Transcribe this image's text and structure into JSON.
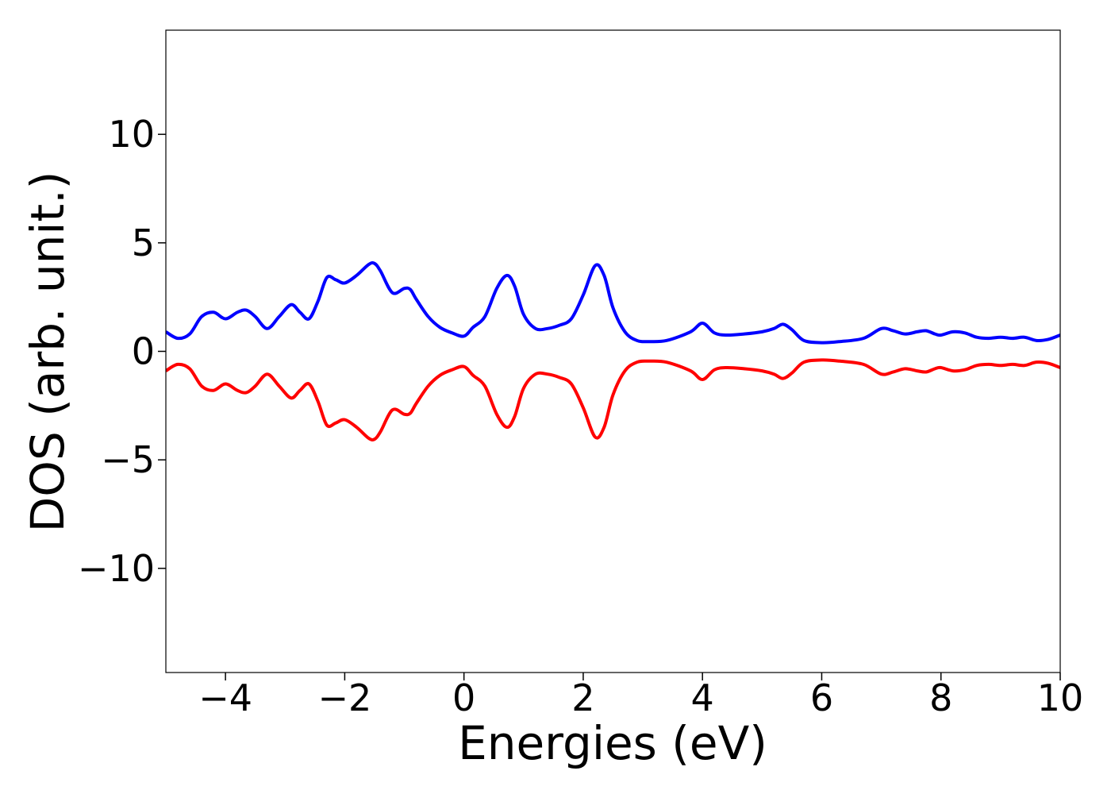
{
  "chart_data": {
    "type": "line",
    "title": "",
    "xlabel": "Energies (eV)",
    "ylabel": "DOS (arb. unit.)",
    "xlim": [
      -5,
      10
    ],
    "ylim": [
      -14.8,
      14.8
    ],
    "grid": false,
    "legend": "none",
    "xticks": [
      -4,
      -2,
      0,
      2,
      4,
      6,
      8,
      10
    ],
    "xtick_labels": [
      "−4",
      "−2",
      "0",
      "2",
      "4",
      "6",
      "8",
      "10"
    ],
    "yticks": [
      -10,
      -5,
      0,
      5,
      10
    ],
    "ytick_labels": [
      "−10",
      "−5",
      "0",
      "5",
      "10"
    ],
    "series": [
      {
        "color": "#0000ff",
        "x": [
          -5.0,
          -4.8,
          -4.6,
          -4.4,
          -4.2,
          -4.0,
          -3.8,
          -3.65,
          -3.5,
          -3.3,
          -3.1,
          -2.9,
          -2.75,
          -2.6,
          -2.45,
          -2.3,
          -2.15,
          -2.0,
          -1.8,
          -1.6,
          -1.5,
          -1.4,
          -1.2,
          -1.0,
          -0.9,
          -0.8,
          -0.6,
          -0.4,
          -0.2,
          0.0,
          0.15,
          0.35,
          0.55,
          0.72,
          0.85,
          1.0,
          1.2,
          1.4,
          1.6,
          1.8,
          2.0,
          2.2,
          2.35,
          2.5,
          2.7,
          2.9,
          3.1,
          3.4,
          3.8,
          4.0,
          4.2,
          4.4,
          4.7,
          5.0,
          5.2,
          5.35,
          5.5,
          5.7,
          6.0,
          6.3,
          6.7,
          7.0,
          7.2,
          7.4,
          7.6,
          7.75,
          7.9,
          8.0,
          8.2,
          8.4,
          8.6,
          8.8,
          9.0,
          9.2,
          9.4,
          9.6,
          9.8,
          10.0
        ],
        "y": [
          0.9,
          0.6,
          0.8,
          1.6,
          1.8,
          1.5,
          1.8,
          1.9,
          1.6,
          1.05,
          1.6,
          2.15,
          1.8,
          1.5,
          2.3,
          3.4,
          3.3,
          3.15,
          3.5,
          4.0,
          4.05,
          3.7,
          2.7,
          2.9,
          2.85,
          2.4,
          1.6,
          1.1,
          0.85,
          0.7,
          1.1,
          1.6,
          2.9,
          3.5,
          3.0,
          1.7,
          1.05,
          1.05,
          1.2,
          1.5,
          2.6,
          3.95,
          3.5,
          2.0,
          0.9,
          0.5,
          0.45,
          0.5,
          0.9,
          1.3,
          0.85,
          0.75,
          0.8,
          0.9,
          1.05,
          1.25,
          1.0,
          0.5,
          0.4,
          0.45,
          0.6,
          1.05,
          0.95,
          0.8,
          0.9,
          0.95,
          0.8,
          0.75,
          0.9,
          0.85,
          0.65,
          0.6,
          0.65,
          0.6,
          0.65,
          0.5,
          0.55,
          0.75
        ]
      },
      {
        "color": "#ff0000",
        "x": [
          -5.0,
          -4.8,
          -4.6,
          -4.4,
          -4.2,
          -4.0,
          -3.8,
          -3.65,
          -3.5,
          -3.3,
          -3.1,
          -2.9,
          -2.75,
          -2.6,
          -2.45,
          -2.3,
          -2.15,
          -2.0,
          -1.8,
          -1.6,
          -1.5,
          -1.4,
          -1.2,
          -1.0,
          -0.9,
          -0.8,
          -0.6,
          -0.4,
          -0.2,
          0.0,
          0.15,
          0.35,
          0.55,
          0.72,
          0.85,
          1.0,
          1.2,
          1.4,
          1.6,
          1.8,
          2.0,
          2.2,
          2.35,
          2.5,
          2.7,
          2.9,
          3.1,
          3.4,
          3.8,
          4.0,
          4.2,
          4.4,
          4.7,
          5.0,
          5.2,
          5.35,
          5.5,
          5.7,
          6.0,
          6.3,
          6.7,
          7.0,
          7.2,
          7.4,
          7.6,
          7.75,
          7.9,
          8.0,
          8.2,
          8.4,
          8.6,
          8.8,
          9.0,
          9.2,
          9.4,
          9.6,
          9.8,
          10.0
        ],
        "y": [
          -0.9,
          -0.6,
          -0.8,
          -1.6,
          -1.8,
          -1.5,
          -1.8,
          -1.9,
          -1.6,
          -1.05,
          -1.6,
          -2.15,
          -1.8,
          -1.5,
          -2.3,
          -3.4,
          -3.3,
          -3.15,
          -3.5,
          -4.0,
          -4.05,
          -3.7,
          -2.7,
          -2.9,
          -2.85,
          -2.4,
          -1.6,
          -1.1,
          -0.85,
          -0.7,
          -1.1,
          -1.6,
          -2.9,
          -3.5,
          -3.0,
          -1.7,
          -1.05,
          -1.05,
          -1.2,
          -1.5,
          -2.6,
          -3.95,
          -3.5,
          -2.0,
          -0.9,
          -0.5,
          -0.45,
          -0.5,
          -0.9,
          -1.3,
          -0.85,
          -0.75,
          -0.8,
          -0.9,
          -1.05,
          -1.25,
          -1.0,
          -0.5,
          -0.4,
          -0.45,
          -0.6,
          -1.05,
          -0.95,
          -0.8,
          -0.9,
          -0.95,
          -0.8,
          -0.75,
          -0.9,
          -0.85,
          -0.65,
          -0.6,
          -0.65,
          -0.6,
          -0.65,
          -0.5,
          -0.55,
          -0.75
        ]
      }
    ]
  }
}
